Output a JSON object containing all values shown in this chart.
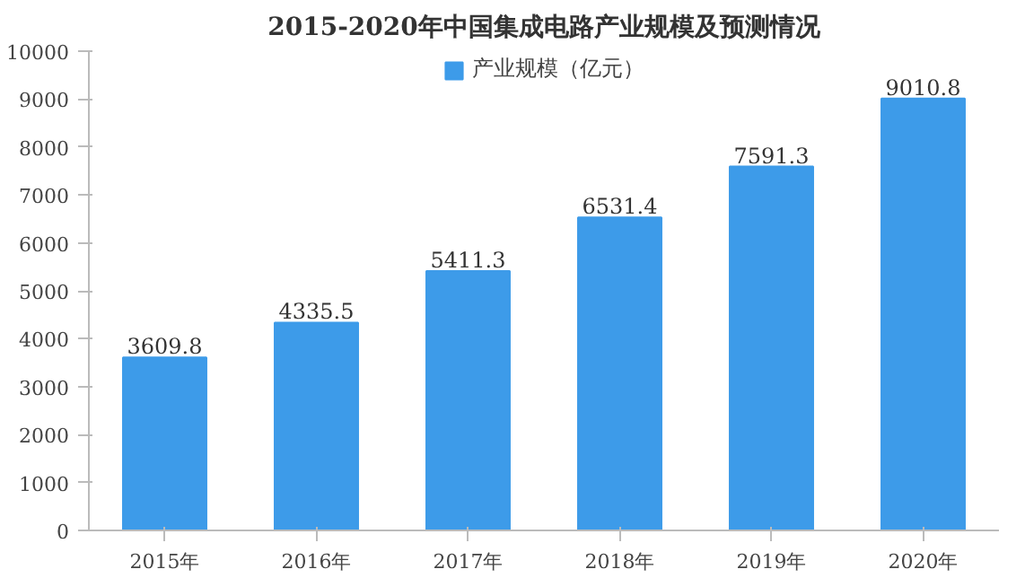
{
  "chart_data": {
    "type": "bar",
    "title": "2015-2020年中国集成电路产业规模及预测情况",
    "categories": [
      "2015年",
      "2016年",
      "2017年",
      "2018年",
      "2019年",
      "2020年"
    ],
    "series": [
      {
        "name": "产业规模（亿元）",
        "color": "#3d9be9",
        "values": [
          3609.8,
          4335.5,
          5411.3,
          6531.4,
          7591.3,
          9010.8
        ]
      }
    ],
    "ylim": [
      0,
      10000
    ],
    "yticks": [
      0,
      1000,
      2000,
      3000,
      4000,
      5000,
      6000,
      7000,
      8000,
      9000,
      10000
    ],
    "grid": false,
    "legend": "top",
    "data_labels": true
  }
}
